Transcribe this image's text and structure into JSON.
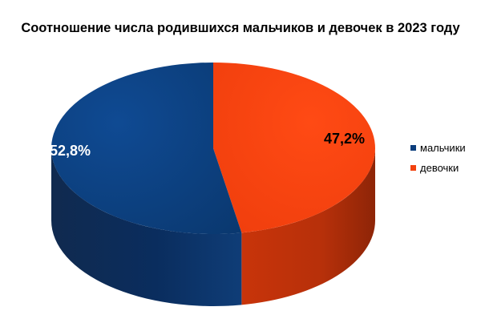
{
  "chart_data": {
    "type": "pie",
    "title": "Соотношение числа родившихся мальчиков и девочек в 2023 году",
    "categories": [
      "мальчики",
      "девочки"
    ],
    "values": [
      52.8,
      47.2
    ],
    "data_labels": [
      "52,8%",
      "47,2%"
    ],
    "colors": [
      "#0b3d7c",
      "#f2420f"
    ],
    "legend_position": "right",
    "three_d": true
  }
}
